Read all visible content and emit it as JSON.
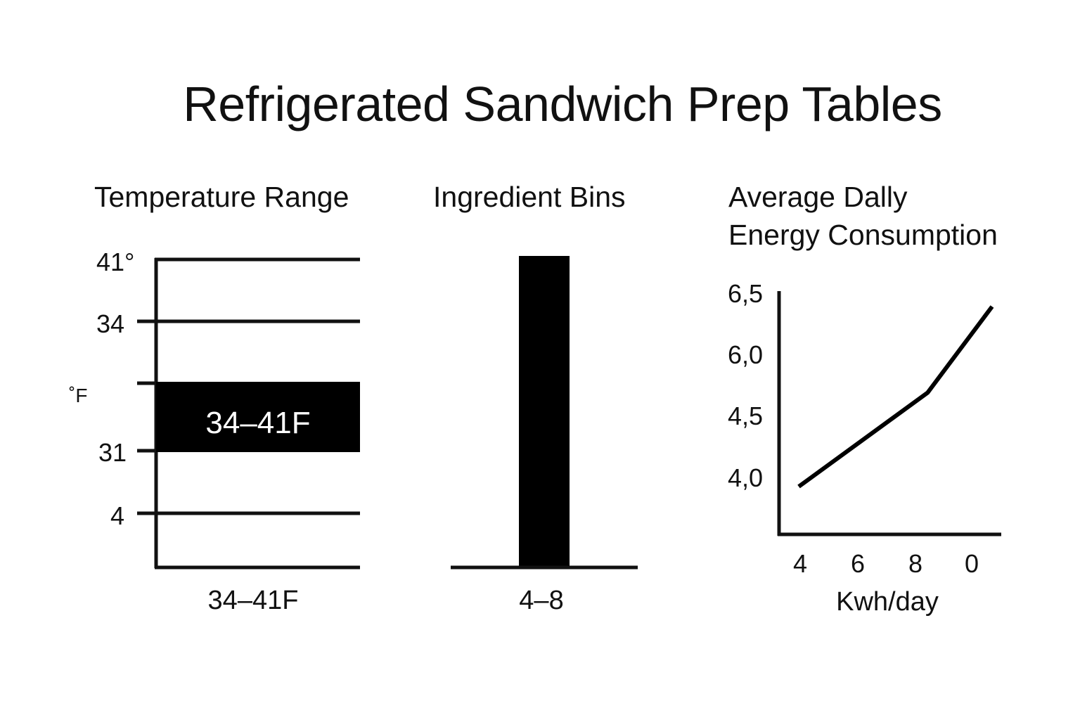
{
  "title": "Refrigerated Sandwich Prep Tables",
  "chart_data": [
    {
      "type": "bar",
      "title": "Temperature Range",
      "ylabel": "˚F",
      "yticks": [
        "41°",
        "34",
        "",
        "31",
        "4"
      ],
      "band_label": "34–41F",
      "xlabel": "34–41F"
    },
    {
      "type": "bar",
      "title": "Ingredient Bins",
      "categories": [
        "4–8"
      ],
      "xlabel": "4–8"
    },
    {
      "type": "line",
      "title_lines": [
        "Average Dally",
        "Energy Consumption"
      ],
      "xticks": [
        "4",
        "6",
        "8",
        "0"
      ],
      "yticks": [
        "6,5",
        "6,0",
        "4,5",
        "4,0"
      ],
      "xlabel": "Kwh/day",
      "x": [
        4,
        6,
        8,
        10
      ],
      "y": [
        4.0,
        4.6,
        5.2,
        6.3
      ],
      "note": "y-axis ticks printed as shown (non-uniform labels)"
    }
  ]
}
